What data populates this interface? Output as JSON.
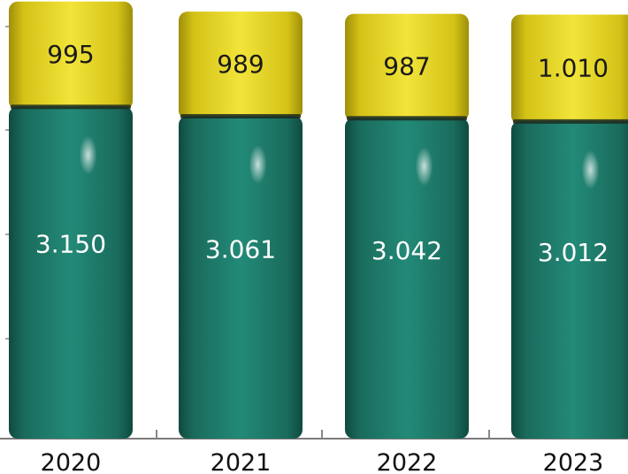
{
  "chart_data": {
    "type": "bar",
    "stacked": true,
    "categories": [
      "2020",
      "2021",
      "2022",
      "2023"
    ],
    "series": [
      {
        "values": [
          3150,
          3061,
          3042,
          3012
        ],
        "labels": [
          "3.150",
          "3.061",
          "3.042",
          "3.012"
        ],
        "color": "#1e7a6a"
      },
      {
        "values": [
          995,
          989,
          987,
          1010
        ],
        "labels": [
          "995",
          "989",
          "987",
          "1.010"
        ],
        "color": "#e3d21f"
      }
    ],
    "ylim": [
      0,
      4160
    ],
    "grid": false,
    "legend": "none",
    "title": "",
    "xlabel": "",
    "ylabel": ""
  },
  "colors": {
    "green": "#1e7a6a",
    "yellow": "#e3d21f",
    "label_on_green": "#ffffff",
    "label_on_yellow": "#1a1a1a"
  }
}
